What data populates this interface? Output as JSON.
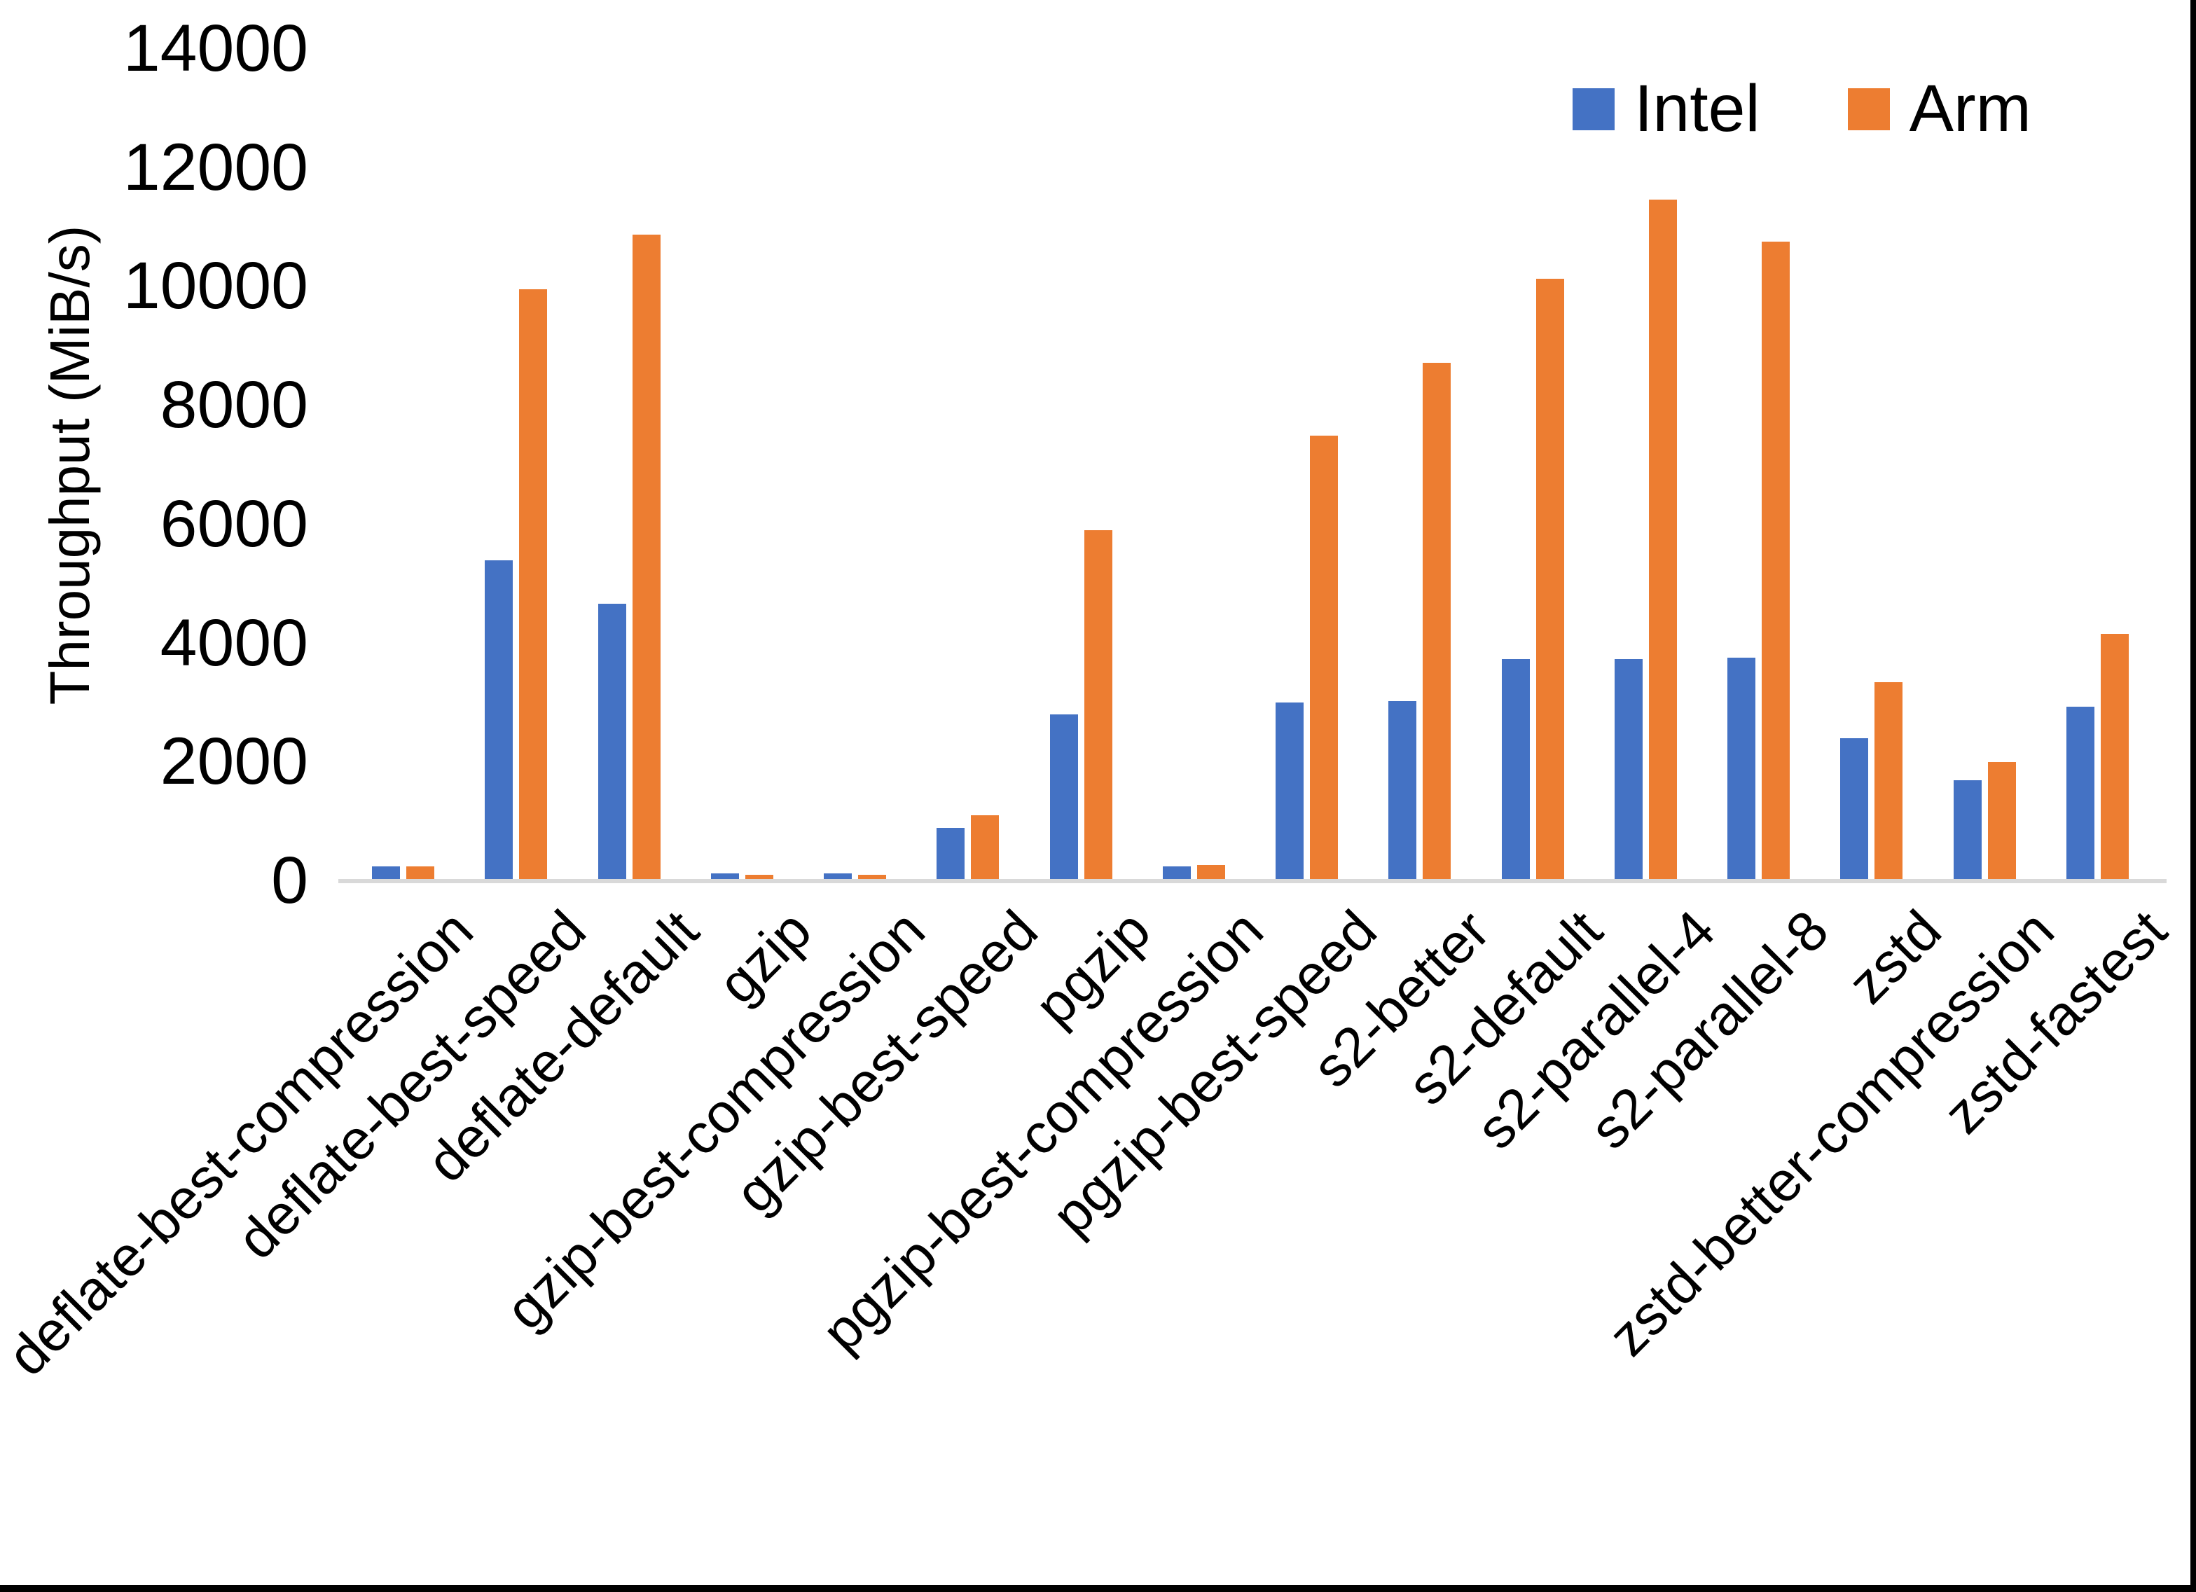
{
  "chart_data": {
    "type": "bar",
    "title": "",
    "xlabel": "",
    "ylabel": "Throughput (MiB/s)",
    "ylim": [
      0,
      14000
    ],
    "yticks": [
      0,
      2000,
      4000,
      6000,
      8000,
      10000,
      12000,
      14000
    ],
    "grid": false,
    "legend_position": "top-right-inside",
    "categories": [
      "deflate-best-compression",
      "deflate-best-speed",
      "deflate-default",
      "gzip",
      "gzip-best-compression",
      "gzip-best-speed",
      "pgzip",
      "pgzip-best-compression",
      "pgzip-best-speed",
      "s2-better",
      "s2-default",
      "s2-parallel-4",
      "s2-parallel-8",
      "zstd",
      "zstd-better-compression",
      "zstd-fastest"
    ],
    "series": [
      {
        "name": "Intel",
        "color": "#4472C4",
        "values": [
          250,
          5400,
          4670,
          130,
          130,
          890,
          2800,
          250,
          3000,
          3030,
          3740,
          3740,
          3760,
          2400,
          1700,
          2930
        ]
      },
      {
        "name": "Arm",
        "color": "#ED7D31",
        "values": [
          250,
          9960,
          10880,
          110,
          110,
          1110,
          5900,
          270,
          7490,
          8720,
          10140,
          11470,
          10760,
          3350,
          2000,
          4160
        ]
      }
    ]
  },
  "colors": {
    "background": "#FFFFFF",
    "axis_line": "#D9D9D9",
    "text": "#000000",
    "frame": "#000000"
  }
}
